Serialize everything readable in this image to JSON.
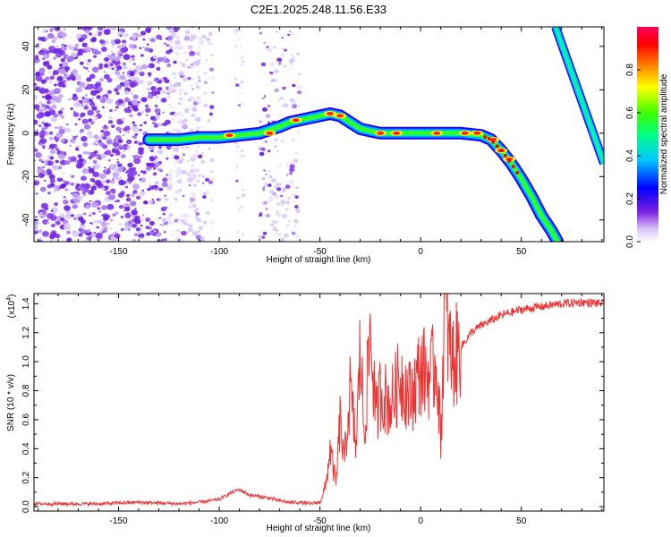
{
  "title": "C2E1.2025.248.11.56.E33",
  "chart_data": [
    {
      "type": "heatmap",
      "panel": "spectrogram",
      "xlabel": "Height of straight line (km)",
      "ylabel": "Frequency (Hz)",
      "xlim": [
        -192,
        91
      ],
      "ylim": [
        -50,
        49
      ],
      "xticks": [
        -150,
        -100,
        -50,
        0,
        50
      ],
      "xtick_labels": [
        "-150",
        "-100",
        "-50",
        "0",
        "50"
      ],
      "yticks": [
        -40,
        -20,
        0,
        20,
        40
      ],
      "ytick_labels": [
        "-40",
        "-20",
        "0",
        "20",
        "40"
      ],
      "ridge_main": {
        "x": [
          -135,
          -120,
          -110,
          -100,
          -90,
          -80,
          -70,
          -65,
          -60,
          -55,
          -50,
          -45,
          -40,
          -35,
          -30,
          -25,
          -20,
          -10,
          0,
          10,
          20,
          30,
          35,
          40,
          45,
          50,
          55,
          60,
          65,
          68
        ],
        "y": [
          -3,
          -3,
          -2,
          -2,
          -1,
          0,
          3,
          5,
          6,
          7,
          8,
          9,
          8,
          5,
          2,
          1,
          0,
          0,
          0,
          0,
          0,
          -1,
          -3,
          -8,
          -14,
          -21,
          -29,
          -38,
          -45,
          -50
        ]
      },
      "ridge_alias": {
        "x": [
          67,
          91
        ],
        "y": [
          49,
          -14
        ]
      },
      "colorbar": {
        "label": "Normalized spectral amplitude",
        "range": [
          0,
          1
        ],
        "ticks": [
          0.0,
          0.2,
          0.4,
          0.6,
          0.8
        ],
        "tick_labels": [
          "0.0",
          "0.2",
          "0.4",
          "0.6",
          "0.8"
        ],
        "colormap": [
          "#ffffff",
          "#c8a8f0",
          "#7a1fe0",
          "#0000ff",
          "#00c8ff",
          "#00ff80",
          "#40ff00",
          "#ffff00",
          "#ff8000",
          "#ff0000",
          "#ff0060"
        ]
      }
    },
    {
      "type": "line",
      "panel": "snr",
      "xlabel": "Height of straight line (km)",
      "ylabel": "SNR (10 * v/v)",
      "yscale_label": "(x10",
      "yscale_exponent": "4",
      "yscale_close": ")",
      "xlim": [
        -192,
        91
      ],
      "ylim": [
        -0.03,
        1.47
      ],
      "xticks": [
        -150,
        -100,
        -50,
        0,
        50
      ],
      "xtick_labels": [
        "-150",
        "-100",
        "-50",
        "0",
        "50"
      ],
      "yticks": [
        0.0,
        0.2,
        0.4,
        0.6,
        0.8,
        1.0,
        1.2,
        1.4
      ],
      "ytick_labels": [
        "0.0",
        "0.2",
        "0.4",
        "0.6",
        "0.8",
        "1.0",
        "1.2",
        "1.4"
      ],
      "series": [
        {
          "name": "SNR",
          "color": "#ee3333",
          "x": [
            -192,
            -180,
            -160,
            -140,
            -120,
            -110,
            -100,
            -95,
            -90,
            -85,
            -80,
            -75,
            -70,
            -65,
            -60,
            -55,
            -50,
            -47,
            -45,
            -42,
            -40,
            -38,
            -35,
            -32,
            -30,
            -28,
            -25,
            -22,
            -20,
            -15,
            -10,
            -5,
            0,
            5,
            8,
            10,
            12,
            14,
            16,
            20,
            25,
            30,
            40,
            50,
            60,
            70,
            80,
            91
          ],
          "y": [
            0.02,
            0.02,
            0.02,
            0.03,
            0.02,
            0.03,
            0.05,
            0.09,
            0.12,
            0.08,
            0.07,
            0.06,
            0.04,
            0.03,
            0.03,
            0.02,
            0.03,
            0.15,
            0.4,
            0.15,
            0.6,
            0.3,
            0.8,
            0.4,
            1.1,
            0.5,
            1.2,
            0.6,
            0.8,
            0.7,
            0.9,
            0.75,
            0.95,
            0.9,
            1.0,
            0.45,
            1.45,
            1.1,
            1.0,
            1.1,
            1.2,
            1.25,
            1.32,
            1.36,
            1.38,
            1.4,
            1.41,
            1.4
          ]
        }
      ]
    }
  ]
}
